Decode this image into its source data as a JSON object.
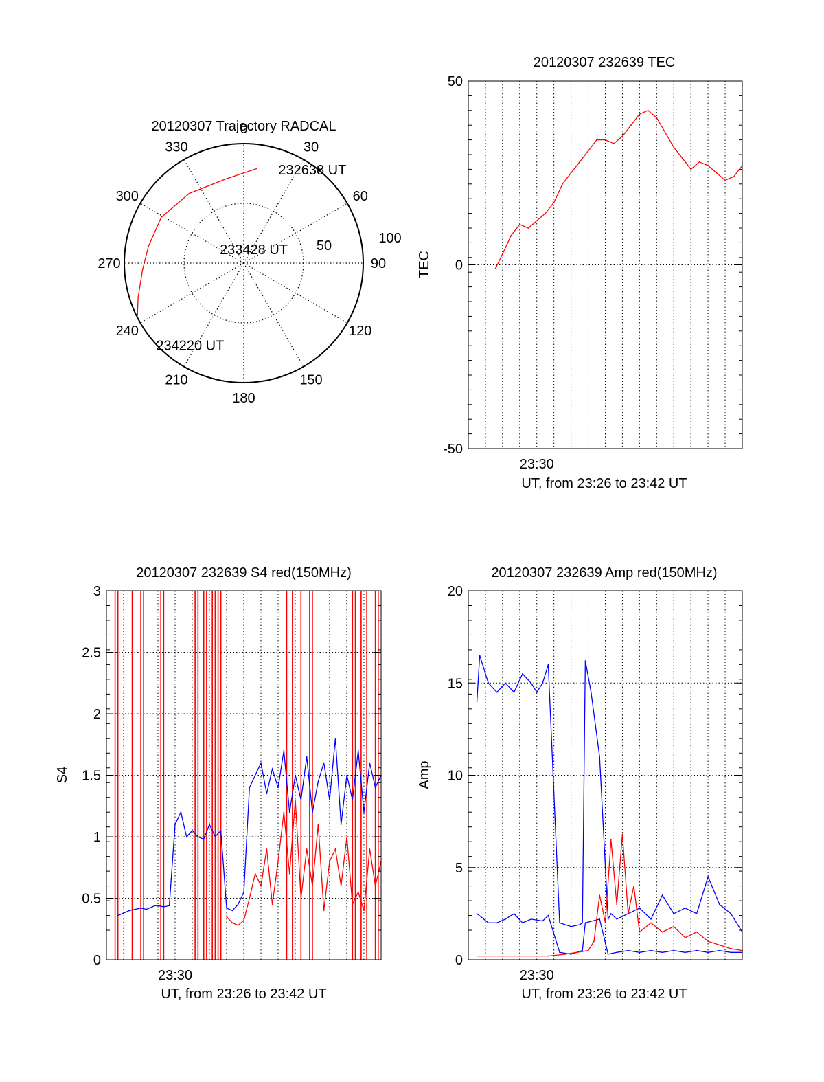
{
  "chart_data": [
    {
      "type": "polar",
      "title": "20120307 Trajectory RADCAL",
      "azimuth_labels": [
        "0",
        "30",
        "60",
        "90",
        "120",
        "150",
        "180",
        "210",
        "240",
        "270",
        "300",
        "330"
      ],
      "azimuth_values": [
        0,
        30,
        60,
        90,
        120,
        150,
        180,
        210,
        240,
        270,
        300,
        330
      ],
      "radius_labels": [
        "50",
        "100"
      ],
      "radius_values": [
        50,
        100
      ],
      "rmax": 100,
      "trajectory_color": "#ff0000",
      "trajectory": [
        {
          "az": 8,
          "r": 80
        },
        {
          "az": 348,
          "r": 72
        },
        {
          "az": 322,
          "r": 74
        },
        {
          "az": 299,
          "r": 79
        },
        {
          "az": 280,
          "r": 81
        },
        {
          "az": 266,
          "r": 85
        },
        {
          "az": 252,
          "r": 93
        },
        {
          "az": 243,
          "r": 100
        }
      ],
      "annotations": [
        {
          "text": "232638 UT",
          "az": 22,
          "r": 85
        },
        {
          "text": "233428 UT",
          "az": 305,
          "r": 21
        },
        {
          "text": "234220 UT",
          "az": 226,
          "r": 98
        }
      ]
    },
    {
      "type": "line",
      "title": "20120307 232639 TEC",
      "xlabel": "UT, from 23:26 to 23:42 UT",
      "ylabel": "TEC",
      "xlim": [
        23.4333,
        23.7
      ],
      "ylim": [
        -50,
        50
      ],
      "yticks": [
        "50",
        "0",
        "-50"
      ],
      "ytick_values": [
        50,
        0,
        -50
      ],
      "xtick_label": "23:30",
      "xtick_value": 23.5,
      "series": [
        {
          "name": "TEC",
          "color": "#ff0000",
          "x": [
            23.4597,
            23.4667,
            23.475,
            23.4833,
            23.4917,
            23.5,
            23.5083,
            23.5167,
            23.525,
            23.5333,
            23.5417,
            23.55,
            23.5583,
            23.5667,
            23.575,
            23.5833,
            23.5917,
            23.6,
            23.6083,
            23.6167,
            23.625,
            23.6333,
            23.6417,
            23.65,
            23.6583,
            23.6667,
            23.675,
            23.6833,
            23.6917,
            23.7
          ],
          "y": [
            -1,
            3,
            8,
            11,
            10,
            12,
            14,
            17,
            22,
            25,
            28,
            31,
            34,
            34,
            33,
            35,
            38,
            41,
            42,
            40,
            36,
            32,
            29,
            26,
            28,
            27,
            25,
            23,
            24,
            27
          ]
        }
      ]
    },
    {
      "type": "line",
      "title": "20120307 232639 S4 red(150MHz)",
      "xlabel": "UT, from 23:26 to 23:42 UT",
      "ylabel": "S4",
      "xlim": [
        23.4333,
        23.7
      ],
      "ylim": [
        0,
        3
      ],
      "yticks": [
        "0",
        "0.5",
        "1",
        "1.5",
        "2",
        "2.5",
        "3"
      ],
      "ytick_values": [
        0,
        0.5,
        1,
        1.5,
        2,
        2.5,
        3
      ],
      "xtick_label": "23:30",
      "xtick_value": 23.5,
      "series": [
        {
          "name": "S4 blue",
          "color": "#0000ff",
          "x": [
            23.4444,
            23.45,
            23.4556,
            23.4611,
            23.4667,
            23.4722,
            23.4778,
            23.4806,
            23.4833,
            23.4889,
            23.4944,
            23.5,
            23.5056,
            23.5111,
            23.5167,
            23.5222,
            23.5278,
            23.5333,
            23.5389,
            23.5444,
            23.55,
            23.5556,
            23.5611,
            23.5667,
            23.5722,
            23.5778,
            23.5833,
            23.5889,
            23.5944,
            23.6,
            23.6056,
            23.6111,
            23.6167,
            23.6222,
            23.6278,
            23.6333,
            23.6389,
            23.6444,
            23.65,
            23.6556,
            23.6611,
            23.6667,
            23.6722,
            23.6778,
            23.6833,
            23.6889,
            23.6944,
            23.7
          ],
          "y": [
            0.36,
            0.38,
            0.4,
            0.41,
            0.42,
            0.41,
            0.43,
            0.44,
            0.44,
            0.43,
            0.44,
            1.1,
            1.2,
            1.0,
            1.05,
            1.0,
            0.98,
            1.1,
            1.0,
            1.05,
            0.42,
            0.4,
            0.45,
            0.55,
            1.4,
            1.5,
            1.6,
            1.35,
            1.55,
            1.4,
            1.7,
            1.2,
            1.5,
            1.3,
            1.65,
            1.2,
            1.45,
            1.6,
            1.3,
            1.8,
            1.1,
            1.5,
            1.3,
            1.7,
            1.2,
            1.6,
            1.4,
            1.5
          ]
        },
        {
          "name": "S4 red",
          "color": "#ff0000",
          "x": [
            23.55,
            23.5556,
            23.5611,
            23.5667,
            23.5722,
            23.5778,
            23.5833,
            23.5889,
            23.5944,
            23.6,
            23.6056,
            23.6111,
            23.6167,
            23.6222,
            23.6278,
            23.6333,
            23.6389,
            23.6444,
            23.65,
            23.6556,
            23.6611,
            23.6667,
            23.6722,
            23.6778,
            23.6833,
            23.6889,
            23.6944,
            23.7
          ],
          "y": [
            0.35,
            0.3,
            0.28,
            0.32,
            0.5,
            0.7,
            0.6,
            0.9,
            0.45,
            0.8,
            1.2,
            0.7,
            1.3,
            0.5,
            0.9,
            0.6,
            1.1,
            0.4,
            0.8,
            0.9,
            0.6,
            1.0,
            0.45,
            0.55,
            0.4,
            0.9,
            0.6,
            0.8
          ]
        }
      ]
    },
    {
      "type": "line",
      "title": "20120307 232639 Amp red(150MHz)",
      "xlabel": "UT, from 23:26 to 23:42 UT",
      "ylabel": "Amp",
      "xlim": [
        23.4333,
        23.7
      ],
      "ylim": [
        0,
        20
      ],
      "yticks": [
        "0",
        "5",
        "10",
        "15",
        "20"
      ],
      "ytick_values": [
        0,
        5,
        10,
        15,
        20
      ],
      "xtick_label": "23:30",
      "xtick_value": 23.5,
      "series": [
        {
          "name": "Amp blue (upper envelope)",
          "color": "#0000ff",
          "x": [
            23.4417,
            23.4444,
            23.4528,
            23.4611,
            23.4694,
            23.4778,
            23.4861,
            23.4944,
            23.5,
            23.5056,
            23.5111,
            23.5222,
            23.5333,
            23.5417,
            23.5444,
            23.5472,
            23.5528,
            23.5611,
            23.5694,
            23.5722,
            23.5778,
            23.5889,
            23.6,
            23.6111,
            23.6222,
            23.6333,
            23.6444,
            23.6556,
            23.6667,
            23.6778,
            23.6889,
            23.7
          ],
          "y": [
            14,
            16.5,
            15,
            14.5,
            15,
            14.5,
            15.5,
            15,
            14.5,
            15,
            16,
            2.0,
            1.8,
            1.9,
            2.0,
            16.2,
            14.5,
            11,
            2.2,
            2.5,
            2.2,
            2.5,
            2.8,
            2.2,
            3.5,
            2.5,
            2.8,
            2.5,
            4.5,
            3.0,
            2.5,
            1.5
          ]
        },
        {
          "name": "Amp blue (lower envelope)",
          "color": "#0000ff",
          "x": [
            23.4417,
            23.4528,
            23.4611,
            23.4694,
            23.4778,
            23.4861,
            23.4944,
            23.5056,
            23.5111,
            23.5222,
            23.5333,
            23.5444,
            23.5472,
            23.5611,
            23.5694,
            23.5778,
            23.5889,
            23.6,
            23.6111,
            23.6222,
            23.6333,
            23.6444,
            23.6556,
            23.6667,
            23.6778,
            23.6889,
            23.7
          ],
          "y": [
            2.5,
            2.0,
            2.0,
            2.2,
            2.5,
            2.0,
            2.2,
            2.1,
            2.4,
            0.4,
            0.3,
            0.5,
            2.0,
            2.2,
            0.3,
            0.4,
            0.5,
            0.4,
            0.5,
            0.4,
            0.5,
            0.4,
            0.5,
            0.4,
            0.5,
            0.4,
            0.4
          ]
        },
        {
          "name": "Amp red",
          "color": "#ff0000",
          "x": [
            23.4417,
            23.4833,
            23.5111,
            23.5278,
            23.5389,
            23.55,
            23.5556,
            23.5611,
            23.5667,
            23.5722,
            23.5778,
            23.5833,
            23.5889,
            23.5944,
            23.6,
            23.6111,
            23.6222,
            23.6333,
            23.6444,
            23.6556,
            23.6667,
            23.6778,
            23.6889,
            23.7
          ],
          "y": [
            0.2,
            0.2,
            0.2,
            0.3,
            0.4,
            0.5,
            1.0,
            3.5,
            2.0,
            6.5,
            3.0,
            6.8,
            2.5,
            4.0,
            1.5,
            2.0,
            1.5,
            1.8,
            1.2,
            1.5,
            1.0,
            0.8,
            0.6,
            0.5
          ]
        }
      ]
    }
  ]
}
